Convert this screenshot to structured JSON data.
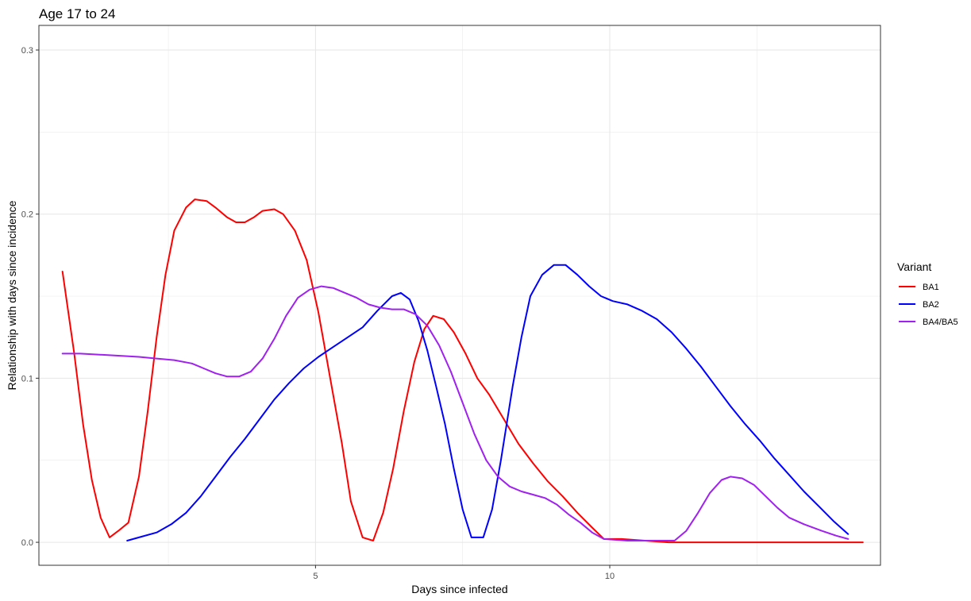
{
  "chart_data": {
    "type": "line",
    "title": "Age 17 to 24",
    "xlabel": "Days since infected",
    "ylabel": "Relationship with days since incidence",
    "xlim": [
      0.3,
      14.6
    ],
    "ylim": [
      -0.014,
      0.315
    ],
    "x_ticks": [
      5,
      10
    ],
    "x_tick_labels": [
      "5",
      "10"
    ],
    "x_minor_ticks": [
      2.5,
      7.5,
      12.5
    ],
    "y_ticks": [
      0.0,
      0.1,
      0.2,
      0.3
    ],
    "y_tick_labels": [
      "0.0",
      "0.1",
      "0.2",
      "0.3"
    ],
    "y_minor_ticks": [
      0.05,
      0.15,
      0.25
    ],
    "grid": true,
    "legend": {
      "title": "Variant",
      "position": "right"
    },
    "series": [
      {
        "name": "BA1",
        "color": "#ff0000",
        "points": [
          [
            0.7,
            0.165
          ],
          [
            0.9,
            0.115
          ],
          [
            1.05,
            0.072
          ],
          [
            1.2,
            0.038
          ],
          [
            1.35,
            0.015
          ],
          [
            1.5,
            0.003
          ],
          [
            1.65,
            0.007
          ],
          [
            1.82,
            0.012
          ],
          [
            2.0,
            0.04
          ],
          [
            2.15,
            0.08
          ],
          [
            2.3,
            0.125
          ],
          [
            2.45,
            0.163
          ],
          [
            2.6,
            0.19
          ],
          [
            2.8,
            0.204
          ],
          [
            2.95,
            0.209
          ],
          [
            3.15,
            0.208
          ],
          [
            3.3,
            0.204
          ],
          [
            3.5,
            0.198
          ],
          [
            3.65,
            0.195
          ],
          [
            3.8,
            0.195
          ],
          [
            3.95,
            0.198
          ],
          [
            4.1,
            0.202
          ],
          [
            4.3,
            0.203
          ],
          [
            4.45,
            0.2
          ],
          [
            4.65,
            0.19
          ],
          [
            4.85,
            0.172
          ],
          [
            5.05,
            0.14
          ],
          [
            5.25,
            0.1
          ],
          [
            5.45,
            0.06
          ],
          [
            5.6,
            0.025
          ],
          [
            5.8,
            0.003
          ],
          [
            5.98,
            0.001
          ],
          [
            6.15,
            0.018
          ],
          [
            6.32,
            0.045
          ],
          [
            6.5,
            0.08
          ],
          [
            6.68,
            0.11
          ],
          [
            6.85,
            0.13
          ],
          [
            7.0,
            0.138
          ],
          [
            7.18,
            0.136
          ],
          [
            7.35,
            0.128
          ],
          [
            7.55,
            0.115
          ],
          [
            7.75,
            0.1
          ],
          [
            7.95,
            0.09
          ],
          [
            8.2,
            0.075
          ],
          [
            8.45,
            0.06
          ],
          [
            8.7,
            0.048
          ],
          [
            8.95,
            0.037
          ],
          [
            9.2,
            0.028
          ],
          [
            9.45,
            0.018
          ],
          [
            9.7,
            0.009
          ],
          [
            9.9,
            0.002
          ],
          [
            10.2,
            0.002
          ],
          [
            10.6,
            0.001
          ],
          [
            11.0,
            0.0
          ],
          [
            12.0,
            0.0
          ],
          [
            13.0,
            0.0
          ],
          [
            14.0,
            0.0
          ],
          [
            14.3,
            0.0
          ]
        ]
      },
      {
        "name": "BA2",
        "color": "#0000ff",
        "points": [
          [
            1.8,
            0.001
          ],
          [
            2.0,
            0.003
          ],
          [
            2.3,
            0.006
          ],
          [
            2.55,
            0.011
          ],
          [
            2.8,
            0.018
          ],
          [
            3.05,
            0.028
          ],
          [
            3.3,
            0.04
          ],
          [
            3.55,
            0.052
          ],
          [
            3.8,
            0.063
          ],
          [
            4.05,
            0.075
          ],
          [
            4.3,
            0.087
          ],
          [
            4.55,
            0.097
          ],
          [
            4.8,
            0.106
          ],
          [
            5.05,
            0.113
          ],
          [
            5.3,
            0.119
          ],
          [
            5.55,
            0.125
          ],
          [
            5.8,
            0.131
          ],
          [
            6.05,
            0.141
          ],
          [
            6.3,
            0.15
          ],
          [
            6.45,
            0.152
          ],
          [
            6.6,
            0.148
          ],
          [
            6.75,
            0.135
          ],
          [
            6.9,
            0.117
          ],
          [
            7.05,
            0.095
          ],
          [
            7.2,
            0.072
          ],
          [
            7.35,
            0.045
          ],
          [
            7.5,
            0.02
          ],
          [
            7.65,
            0.003
          ],
          [
            7.85,
            0.003
          ],
          [
            8.0,
            0.02
          ],
          [
            8.15,
            0.05
          ],
          [
            8.35,
            0.095
          ],
          [
            8.5,
            0.125
          ],
          [
            8.65,
            0.15
          ],
          [
            8.85,
            0.163
          ],
          [
            9.05,
            0.169
          ],
          [
            9.25,
            0.169
          ],
          [
            9.45,
            0.163
          ],
          [
            9.65,
            0.156
          ],
          [
            9.85,
            0.15
          ],
          [
            10.05,
            0.147
          ],
          [
            10.3,
            0.145
          ],
          [
            10.55,
            0.141
          ],
          [
            10.8,
            0.136
          ],
          [
            11.05,
            0.128
          ],
          [
            11.3,
            0.118
          ],
          [
            11.55,
            0.107
          ],
          [
            11.8,
            0.095
          ],
          [
            12.05,
            0.083
          ],
          [
            12.3,
            0.072
          ],
          [
            12.55,
            0.062
          ],
          [
            12.8,
            0.051
          ],
          [
            13.05,
            0.041
          ],
          [
            13.3,
            0.031
          ],
          [
            13.55,
            0.022
          ],
          [
            13.8,
            0.013
          ],
          [
            14.05,
            0.005
          ]
        ]
      },
      {
        "name": "BA4/BA5",
        "color": "#a020f0",
        "points": [
          [
            0.7,
            0.115
          ],
          [
            1.0,
            0.115
          ],
          [
            1.5,
            0.114
          ],
          [
            2.0,
            0.113
          ],
          [
            2.3,
            0.112
          ],
          [
            2.6,
            0.111
          ],
          [
            2.9,
            0.109
          ],
          [
            3.1,
            0.106
          ],
          [
            3.3,
            0.103
          ],
          [
            3.5,
            0.101
          ],
          [
            3.7,
            0.101
          ],
          [
            3.9,
            0.104
          ],
          [
            4.1,
            0.112
          ],
          [
            4.3,
            0.124
          ],
          [
            4.5,
            0.138
          ],
          [
            4.7,
            0.149
          ],
          [
            4.9,
            0.154
          ],
          [
            5.1,
            0.156
          ],
          [
            5.3,
            0.155
          ],
          [
            5.5,
            0.152
          ],
          [
            5.7,
            0.149
          ],
          [
            5.9,
            0.145
          ],
          [
            6.1,
            0.143
          ],
          [
            6.3,
            0.142
          ],
          [
            6.5,
            0.142
          ],
          [
            6.7,
            0.139
          ],
          [
            6.9,
            0.132
          ],
          [
            7.1,
            0.12
          ],
          [
            7.3,
            0.104
          ],
          [
            7.5,
            0.085
          ],
          [
            7.7,
            0.066
          ],
          [
            7.9,
            0.05
          ],
          [
            8.1,
            0.04
          ],
          [
            8.3,
            0.034
          ],
          [
            8.5,
            0.031
          ],
          [
            8.7,
            0.029
          ],
          [
            8.9,
            0.027
          ],
          [
            9.1,
            0.023
          ],
          [
            9.3,
            0.017
          ],
          [
            9.5,
            0.012
          ],
          [
            9.7,
            0.006
          ],
          [
            9.9,
            0.002
          ],
          [
            10.3,
            0.001
          ],
          [
            10.8,
            0.001
          ],
          [
            11.1,
            0.001
          ],
          [
            11.3,
            0.007
          ],
          [
            11.5,
            0.018
          ],
          [
            11.7,
            0.03
          ],
          [
            11.9,
            0.038
          ],
          [
            12.05,
            0.04
          ],
          [
            12.25,
            0.039
          ],
          [
            12.45,
            0.035
          ],
          [
            12.65,
            0.028
          ],
          [
            12.85,
            0.021
          ],
          [
            13.05,
            0.015
          ],
          [
            13.3,
            0.011
          ],
          [
            13.6,
            0.007
          ],
          [
            13.85,
            0.004
          ],
          [
            14.05,
            0.002
          ]
        ]
      }
    ]
  }
}
